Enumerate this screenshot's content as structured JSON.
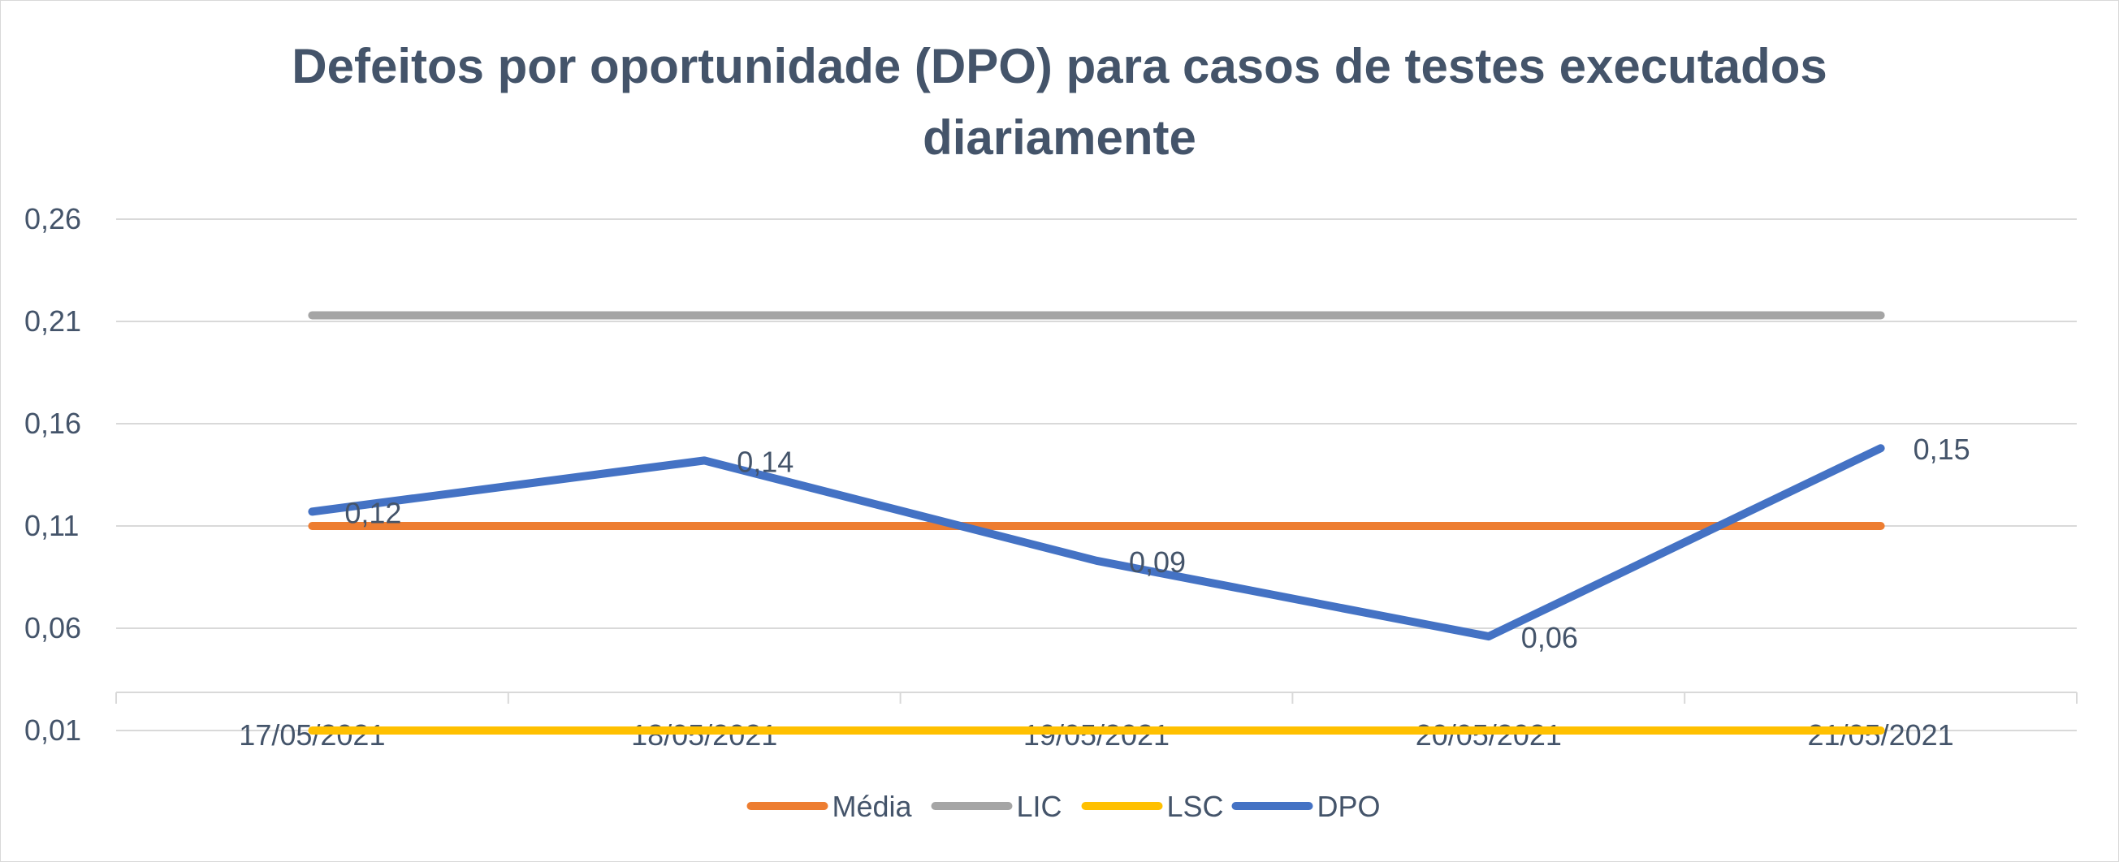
{
  "chart_data": {
    "type": "line",
    "title": [
      "Defeitos por oportunidade (DPO) para casos de testes executados",
      "diariamente"
    ],
    "categories": [
      "17/05/2021",
      "18/05/2021",
      "19/05/2021",
      "20/05/2021",
      "21/05/2021"
    ],
    "y_ticks": [
      "0,01",
      "0,06",
      "0,11",
      "0,16",
      "0,21",
      "0,26"
    ],
    "ylim": [
      0.01,
      0.26
    ],
    "grid": true,
    "legend_position": "bottom",
    "series": [
      {
        "name": "Média",
        "color": "#ed7d31",
        "values": [
          0.11,
          0.11,
          0.11,
          0.11,
          0.11
        ]
      },
      {
        "name": "LIC",
        "color": "#a5a5a5",
        "values": [
          0.213,
          0.213,
          0.213,
          0.213,
          0.213
        ]
      },
      {
        "name": "LSC",
        "color": "#ffc000",
        "values": [
          0.01,
          0.01,
          0.01,
          0.01,
          0.01
        ]
      },
      {
        "name": "DPO",
        "color": "#4472c4",
        "values": [
          0.117,
          0.142,
          0.093,
          0.056,
          0.148
        ],
        "data_labels": [
          "0,12",
          "0,14",
          "0,09",
          "0,06",
          "0,15"
        ]
      }
    ]
  }
}
